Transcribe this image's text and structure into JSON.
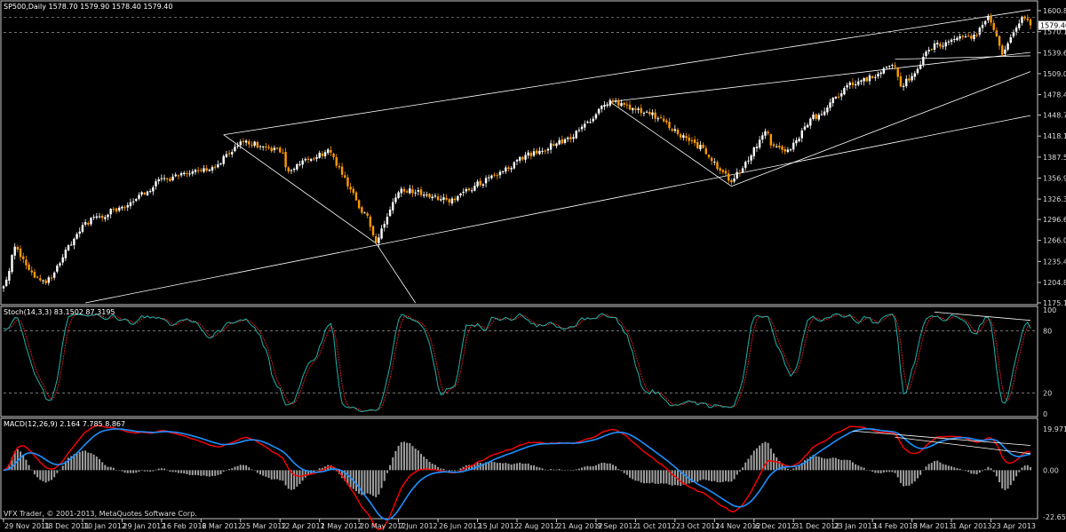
{
  "main_header": "SP500,Daily  1578.70 1579.90 1578.40 1579.40",
  "stoch_header": "Stoch(14,3,3) 83.1502 87.3195",
  "macd_header": "MACD(12,26,9) 2.164 7.785 8.867",
  "copyright": "VFX Trader, © 2001-2013, MetaQuotes Software Corp.",
  "price_axis": {
    "ticks": [
      "1600.80",
      "1570.10",
      "1539.60",
      "1509.00",
      "1478.40",
      "1448.70",
      "1418.10",
      "1387.50",
      "1356.90",
      "1326.30",
      "1296.60",
      "1266.00",
      "1235.40",
      "1204.80",
      "1175.10"
    ],
    "current_price": "1579.40",
    "marker_price": "1569.30"
  },
  "stoch_axis": {
    "ticks": [
      "100",
      "80",
      "20",
      "0"
    ]
  },
  "macd_axis": {
    "ticks": [
      "19.971",
      "0.00",
      "-22.652"
    ]
  },
  "date_axis": [
    "29 Nov 2011",
    "18 Dec 2011",
    "10 Jan 2012",
    "29 Jan 2012",
    "16 Feb 2012",
    "6 Mar 2012",
    "25 Mar 2012",
    "12 Apr 2012",
    "1 May 2012",
    "20 May 2012",
    "7 Jun 2012",
    "26 Jun 2012",
    "15 Jul 2012",
    "2 Aug 2012",
    "21 Aug 2012",
    "9 Sep 2012",
    "1 Oct 2012",
    "23 Oct 2012",
    "14 Nov 2012",
    "6 Dec 2012",
    "31 Dec 2012",
    "23 Jan 2013",
    "14 Feb 2013",
    "8 Mar 2013",
    "1 Apr 2013",
    "23 Apr 2013"
  ],
  "colors": {
    "background": "#000000",
    "bull_candle": "#ffffff",
    "bear_candle": "#ff9a00",
    "stoch_main": "#20b2aa",
    "stoch_signal": "#ff2020",
    "macd_line": "#1e90ff",
    "macd_signal": "#ff0000",
    "macd_histogram": "#a0a0a0",
    "trendlines": "#ffffff"
  },
  "chart_data": [
    {
      "type": "candlestick",
      "symbol": "SP500",
      "timeframe": "Daily",
      "ylim": [
        1175.1,
        1600.8
      ],
      "last": {
        "open": 1578.7,
        "high": 1579.9,
        "low": 1578.4,
        "close": 1579.4
      },
      "trend_closes": [
        [
          "29 Nov 2011",
          1196
        ],
        [
          "5 Dec 2011",
          1255
        ],
        [
          "14 Dec 2011",
          1212
        ],
        [
          "20 Dec 2011",
          1205
        ],
        [
          "10 Jan 2012",
          1292
        ],
        [
          "29 Jan 2012",
          1316
        ],
        [
          "16 Feb 2012",
          1355
        ],
        [
          "6 Mar 2012",
          1368
        ],
        [
          "25 Mar 2012",
          1412
        ],
        [
          "3 Apr 2012",
          1407
        ],
        [
          "12 Apr 2012",
          1370
        ],
        [
          "18 Apr 2012",
          1395
        ],
        [
          "1 May 2012",
          1395
        ],
        [
          "20 May 2012",
          1300
        ],
        [
          "4 Jun 2012",
          1267
        ],
        [
          "18 Jun 2012",
          1340
        ],
        [
          "26 Jun 2012",
          1325
        ],
        [
          "15 Jul 2012",
          1355
        ],
        [
          "2 Aug 2012",
          1390
        ],
        [
          "21 Aug 2012",
          1415
        ],
        [
          "9 Sep 2012",
          1468
        ],
        [
          "20 Sep 2012",
          1440
        ],
        [
          "1 Oct 2012",
          1450
        ],
        [
          "23 Oct 2012",
          1410
        ],
        [
          "14 Nov 2012",
          1355
        ],
        [
          "6 Dec 2012",
          1408
        ],
        [
          "20 Dec 2012",
          1425
        ],
        [
          "28 Dec 2012",
          1392
        ],
        [
          "31 Dec 2012",
          1445
        ],
        [
          "23 Jan 2013",
          1495
        ],
        [
          "14 Feb 2013",
          1520
        ],
        [
          "25 Feb 2013",
          1490
        ],
        [
          "8 Mar 2013",
          1550
        ],
        [
          "1 Apr 2013",
          1565
        ],
        [
          "11 Apr 2013",
          1592
        ],
        [
          "18 Apr 2013",
          1540
        ],
        [
          "23 Apr 2013",
          1575
        ],
        [
          "29 Apr 2013",
          1593
        ],
        [
          "2 May 2013",
          1579.4
        ]
      ]
    },
    {
      "type": "line",
      "name": "Stoch(14,3,3)",
      "ylim": [
        0,
        100
      ],
      "levels": [
        80,
        20
      ],
      "last_values": {
        "main": 83.1502,
        "signal": 87.3195
      }
    },
    {
      "type": "line",
      "name": "MACD(12,26,9)",
      "ylim": [
        -22.652,
        19.971
      ],
      "last_values": {
        "histogram": 2.164,
        "macd": 7.785,
        "signal": 8.867
      }
    }
  ]
}
